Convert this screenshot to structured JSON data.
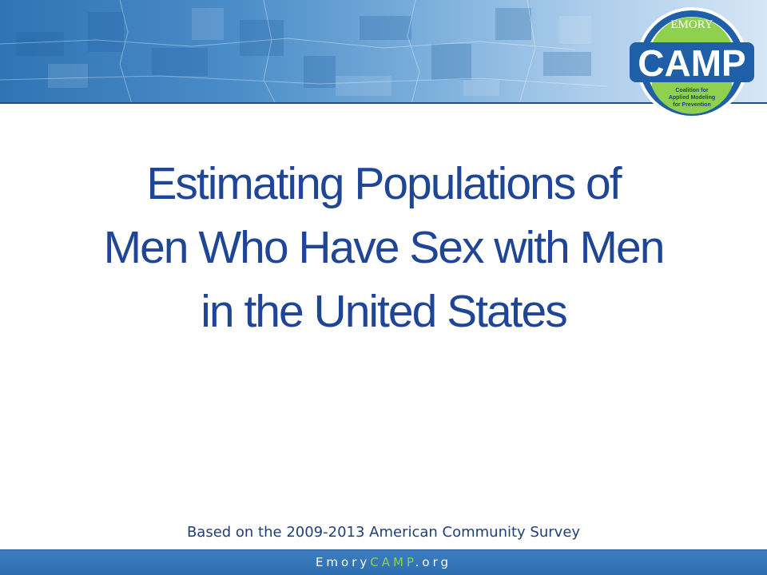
{
  "slide": {
    "title_lines": [
      "Estimating Populations of",
      "Men Who Have Sex with Men",
      "in the United States"
    ],
    "subtitle": "Based on the 2009-2013 American Community Survey"
  },
  "logo": {
    "top_text": "EMORY",
    "main_text": "CAMP",
    "tagline_lines": [
      "Coalition for",
      "Applied Modeling",
      "for Prevention"
    ]
  },
  "footer": {
    "prefix": "Emory",
    "accent": "CAMP",
    "suffix": ".org"
  },
  "colors": {
    "title": "#1f4596",
    "banner": "#2f74b5",
    "footer": "#2d6cb0",
    "logo_green": "#8fd14f",
    "logo_blue": "#1f5fa8"
  }
}
